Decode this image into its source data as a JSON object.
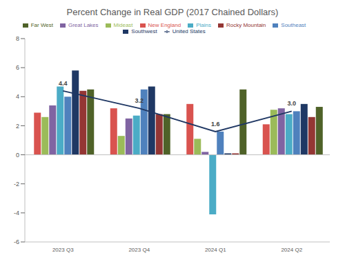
{
  "chart_data": {
    "type": "bar",
    "title": "Percent Change in Real GDP (2017 Chained Dollars)",
    "categories": [
      "2023 Q3",
      "2023 Q4",
      "2024 Q1",
      "2024 Q2"
    ],
    "ylim": [
      -6,
      8
    ],
    "yticks": [
      -6,
      -4,
      -2,
      0,
      2,
      4,
      6,
      8
    ],
    "grid": false,
    "legend": "top",
    "series": [
      {
        "name": "New England",
        "color": "#d9534f",
        "values": [
          2.9,
          3.2,
          3.5,
          2.1
        ]
      },
      {
        "name": "Mideast",
        "color": "#9bbb59",
        "values": [
          2.6,
          1.3,
          1.1,
          3.1
        ]
      },
      {
        "name": "Great Lakes",
        "color": "#8064a2",
        "values": [
          3.4,
          2.5,
          0.2,
          3.2
        ]
      },
      {
        "name": "Plains",
        "color": "#4bacc6",
        "values": [
          4.7,
          2.7,
          -4.1,
          2.8
        ]
      },
      {
        "name": "Southeast",
        "color": "#4f81bd",
        "values": [
          4.0,
          4.5,
          1.6,
          3.0
        ]
      },
      {
        "name": "Southwest",
        "color": "#1f3864",
        "values": [
          5.8,
          4.7,
          0.1,
          3.5
        ]
      },
      {
        "name": "Rocky Mountain",
        "color": "#943634",
        "values": [
          4.4,
          2.8,
          0.1,
          2.6
        ]
      },
      {
        "name": "Far West",
        "color": "#4f6228",
        "values": [
          4.5,
          2.8,
          4.5,
          3.3
        ]
      },
      {
        "name": "United States",
        "color": "#203864",
        "type": "line",
        "data_labels": true,
        "values": [
          4.4,
          3.2,
          1.6,
          3.0
        ],
        "value_labels": [
          "4.4",
          "3.2",
          "1.6",
          "3.0"
        ]
      }
    ]
  }
}
